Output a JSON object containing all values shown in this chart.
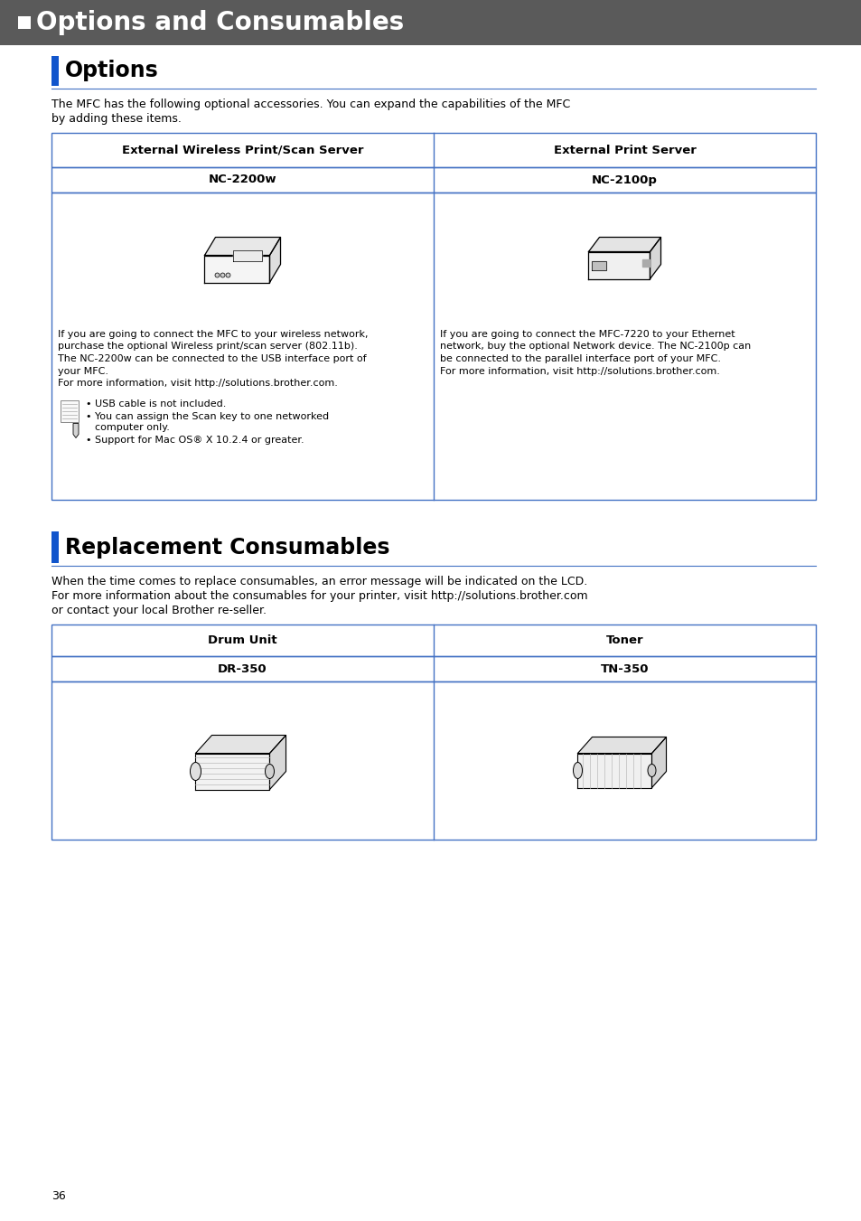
{
  "page_bg": "#ffffff",
  "header_bg": "#5a5a5a",
  "header_text": "Options and Consumables",
  "header_text_color": "#ffffff",
  "blue_bar_color": "#1155cc",
  "section1_title": "Options",
  "section1_desc1": "The MFC has the following optional accessories. You can expand the capabilities of the MFC",
  "section1_desc2": "by adding these items.",
  "table1_border_color": "#4472c4",
  "table1_col1_header": "External Wireless Print/Scan Server",
  "table1_col2_header": "External Print Server",
  "table1_col1_model": "NC-2200w",
  "table1_col2_model": "NC-2100p",
  "table1_left_desc_lines": [
    "If you are going to connect the MFC to your wireless network,",
    "purchase the optional Wireless print/scan server (802.11b).",
    "The NC-2200w can be connected to the USB interface port of",
    "your MFC.",
    "For more information, visit http://solutions.brother.com."
  ],
  "table1_right_desc_lines": [
    "If you are going to connect the MFC-7220 to your Ethernet",
    "network, buy the optional Network device. The NC-2100p can",
    "be connected to the parallel interface port of your MFC.",
    "For more information, visit http://solutions.brother.com."
  ],
  "table1_note_bullets": [
    "USB cable is not included.",
    "You can assign the Scan key to one networked",
    "    computer only.",
    "Support for Mac OS® X 10.2.4 or greater."
  ],
  "section2_title": "Replacement Consumables",
  "section2_desc1": "When the time comes to replace consumables, an error message will be indicated on the LCD.",
  "section2_desc2": "For more information about the consumables for your printer, visit http://solutions.brother.com",
  "section2_desc3": "or contact your local Brother re-seller.",
  "table2_border_color": "#4472c4",
  "table2_col1_header": "Drum Unit",
  "table2_col2_header": "Toner",
  "table2_col1_model": "DR-350",
  "table2_col2_model": "TN-350",
  "page_number": "36",
  "line_color": "#4472c4"
}
